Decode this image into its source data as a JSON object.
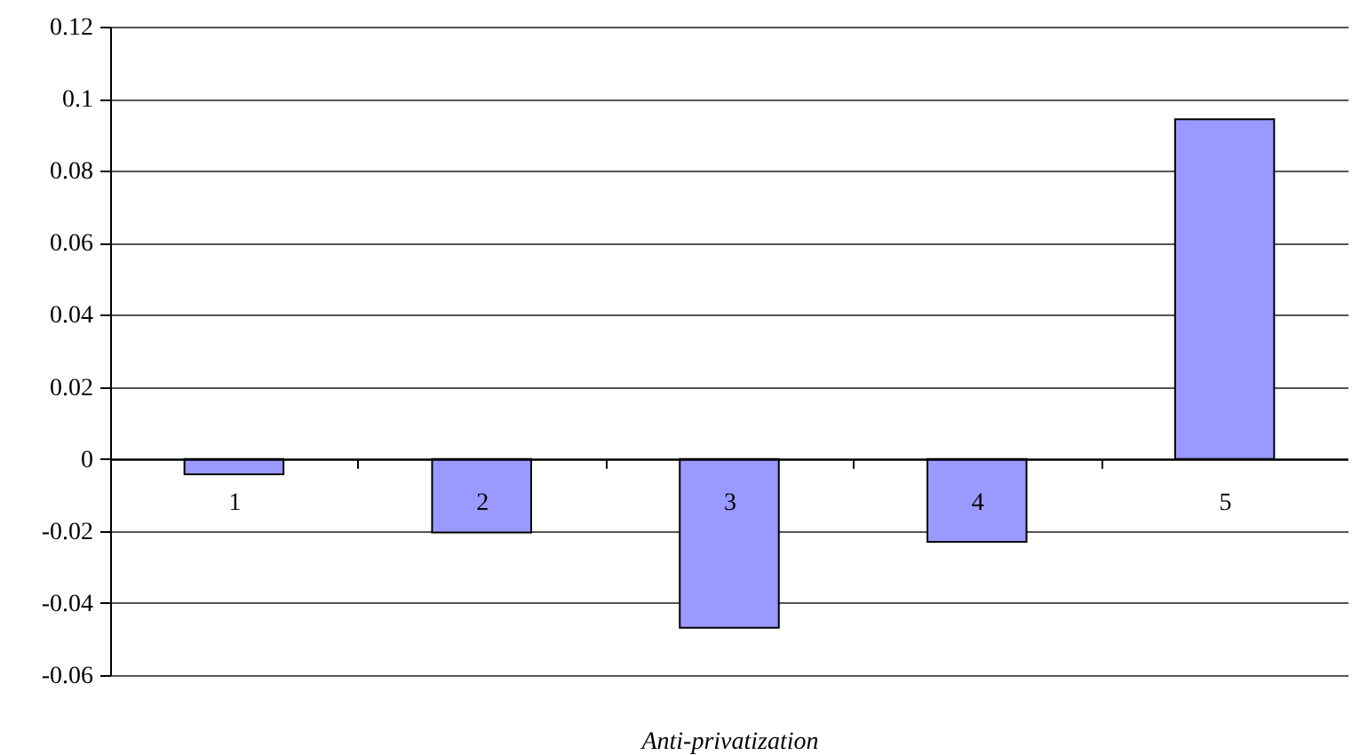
{
  "chart_data": {
    "type": "bar",
    "xlabel": "Anti-privatization",
    "categories": [
      "1",
      "2",
      "3",
      "4",
      "5"
    ],
    "values": [
      -0.0043,
      -0.0204,
      -0.0469,
      -0.023,
      0.0943
    ],
    "color": "#9999ff",
    "ylim": [
      -0.06,
      0.12
    ],
    "yticks": [
      -0.06,
      -0.04,
      -0.02,
      0,
      0.02,
      0.04,
      0.06,
      0.08,
      0.1,
      0.12
    ],
    "grid": "y"
  }
}
